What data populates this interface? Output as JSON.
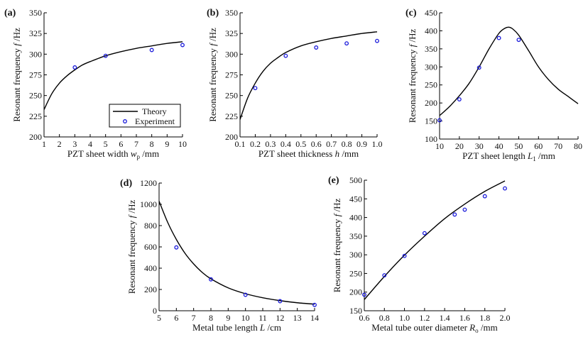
{
  "chart_data": [
    {
      "id": "a",
      "panel_label": "(a)",
      "type": "line+scatter",
      "xlabel": "PZT sheet width",
      "xlabel_symbol": "w",
      "xlabel_sub": "p",
      "xlabel_unit": " /mm",
      "ylabel": "Resonant frequency",
      "ylabel_symbol": "f",
      "ylabel_unit": " /Hz",
      "xlim": [
        1,
        10
      ],
      "ylim": [
        200,
        350
      ],
      "xticks": [
        "1",
        "2",
        "3",
        "4",
        "5",
        "6",
        "7",
        "8",
        "9",
        "10"
      ],
      "yticks": [
        "200",
        "225",
        "250",
        "275",
        "300",
        "325",
        "350"
      ],
      "xtick_values": [
        1,
        2,
        3,
        4,
        5,
        6,
        7,
        8,
        9,
        10
      ],
      "ytick_values": [
        200,
        225,
        250,
        275,
        300,
        325,
        350
      ],
      "legend": {
        "position": "bottom-right",
        "entries": [
          "Theory",
          "Experiment"
        ]
      },
      "theory": {
        "x": [
          1,
          1.5,
          2,
          2.5,
          3,
          3.5,
          4,
          5,
          6,
          7,
          8,
          9,
          10
        ],
        "y": [
          233,
          252,
          265,
          274,
          281,
          287,
          291,
          298,
          303,
          307,
          310,
          313,
          315
        ]
      },
      "experiment": {
        "x": [
          3,
          5,
          8,
          10
        ],
        "y": [
          284,
          298,
          305,
          311
        ]
      }
    },
    {
      "id": "b",
      "panel_label": "(b)",
      "type": "line+scatter",
      "xlabel": "PZT sheet thickness",
      "xlabel_symbol": "h",
      "xlabel_sub": "",
      "xlabel_unit": " /mm",
      "ylabel": "Resonant frequency",
      "ylabel_symbol": "f",
      "ylabel_unit": " /Hz",
      "xlim": [
        0.1,
        1.0
      ],
      "ylim": [
        200,
        350
      ],
      "xticks": [
        "0.1",
        "0.2",
        "0.3",
        "0.4",
        "0.5",
        "0.6",
        "0.7",
        "0.8",
        "0.9",
        "1.0"
      ],
      "yticks": [
        "200",
        "225",
        "250",
        "275",
        "300",
        "325",
        "350"
      ],
      "xtick_values": [
        0.1,
        0.2,
        0.3,
        0.4,
        0.5,
        0.6,
        0.7,
        0.8,
        0.9,
        1.0
      ],
      "ytick_values": [
        200,
        225,
        250,
        275,
        300,
        325,
        350
      ],
      "theory": {
        "x": [
          0.1,
          0.15,
          0.2,
          0.25,
          0.3,
          0.35,
          0.4,
          0.5,
          0.6,
          0.7,
          0.8,
          0.9,
          1.0
        ],
        "y": [
          221,
          247,
          265,
          279,
          289,
          296,
          302,
          310,
          315,
          319,
          322,
          325,
          327
        ]
      },
      "experiment": {
        "x": [
          0.2,
          0.4,
          0.6,
          0.8,
          1.0
        ],
        "y": [
          259,
          298,
          308,
          313,
          316
        ]
      }
    },
    {
      "id": "c",
      "panel_label": "(c)",
      "type": "line+scatter",
      "xlabel": "PZT sheet length",
      "xlabel_symbol": "L",
      "xlabel_sub": "1",
      "xlabel_unit": " /mm",
      "ylabel": "Resonant frequency",
      "ylabel_symbol": "f",
      "ylabel_unit": " /Hz",
      "xlim": [
        10,
        80
      ],
      "ylim": [
        100,
        450
      ],
      "xticks": [
        "10",
        "20",
        "30",
        "40",
        "50",
        "60",
        "70",
        "80"
      ],
      "yticks": [
        "100",
        "150",
        "200",
        "250",
        "300",
        "350",
        "400",
        "450"
      ],
      "xtick_values": [
        10,
        20,
        30,
        40,
        50,
        60,
        70,
        80
      ],
      "ytick_values": [
        100,
        150,
        200,
        250,
        300,
        350,
        400,
        450
      ],
      "theory": {
        "x": [
          10,
          15,
          20,
          25,
          30,
          35,
          40,
          43,
          45,
          47,
          50,
          55,
          60,
          65,
          70,
          75,
          80
        ],
        "y": [
          165,
          190,
          220,
          255,
          300,
          350,
          393,
          407,
          410,
          405,
          388,
          345,
          300,
          265,
          238,
          218,
          198
        ]
      },
      "experiment": {
        "x": [
          10,
          20,
          30,
          40,
          50
        ],
        "y": [
          152,
          210,
          298,
          380,
          375
        ]
      }
    },
    {
      "id": "d",
      "panel_label": "(d)",
      "type": "line+scatter",
      "xlabel": "Metal tube length",
      "xlabel_symbol": "L",
      "xlabel_sub": "",
      "xlabel_unit": " /cm",
      "ylabel": "Resonant frequency",
      "ylabel_symbol": "f",
      "ylabel_unit": " /Hz",
      "xlim": [
        5,
        14
      ],
      "ylim": [
        0,
        1200
      ],
      "xticks": [
        "5",
        "6",
        "7",
        "8",
        "9",
        "10",
        "11",
        "12",
        "13",
        "14"
      ],
      "yticks": [
        "0",
        "200",
        "400",
        "600",
        "800",
        "1000",
        "1200"
      ],
      "xtick_values": [
        5,
        6,
        7,
        8,
        9,
        10,
        11,
        12,
        13,
        14
      ],
      "ytick_values": [
        0,
        200,
        400,
        600,
        800,
        1000,
        1200
      ],
      "theory": {
        "x": [
          5,
          5.5,
          6,
          6.5,
          7,
          7.5,
          8,
          9,
          10,
          11,
          12,
          13,
          14
        ],
        "y": [
          1030,
          830,
          670,
          540,
          440,
          360,
          300,
          215,
          160,
          122,
          95,
          75,
          62
        ]
      },
      "experiment": {
        "x": [
          6,
          8,
          10,
          12,
          14
        ],
        "y": [
          595,
          295,
          150,
          90,
          55
        ]
      }
    },
    {
      "id": "e",
      "panel_label": "(e)",
      "type": "line+scatter",
      "xlabel": "Metal tube outer diameter",
      "xlabel_symbol": "R",
      "xlabel_sub": "o",
      "xlabel_unit": " /mm",
      "ylabel": "Resonant frequency",
      "ylabel_symbol": "f",
      "ylabel_unit": " /Hz",
      "xlim": [
        0.6,
        2.0
      ],
      "ylim": [
        150,
        500
      ],
      "xticks": [
        "0.6",
        "0.8",
        "1.0",
        "1.2",
        "1.4",
        "1.6",
        "1.8",
        "2.0"
      ],
      "yticks": [
        "150",
        "200",
        "250",
        "300",
        "350",
        "400",
        "450",
        "500"
      ],
      "xtick_values": [
        0.6,
        0.8,
        1.0,
        1.2,
        1.4,
        1.6,
        1.8,
        2.0
      ],
      "ytick_values": [
        150,
        200,
        250,
        300,
        350,
        400,
        450,
        500
      ],
      "theory": {
        "x": [
          0.6,
          0.8,
          1.0,
          1.2,
          1.4,
          1.6,
          1.8,
          2.0
        ],
        "y": [
          180,
          242,
          299,
          350,
          397,
          436,
          470,
          498
        ]
      },
      "experiment": {
        "x": [
          0.6,
          0.8,
          1.0,
          1.2,
          1.5,
          1.6,
          1.8,
          2.0
        ],
        "y": [
          193,
          245,
          297,
          358,
          408,
          421,
          457,
          478
        ]
      }
    }
  ],
  "colors": {
    "theory_line": "#000000",
    "experiment_marker": "#1a1adb",
    "axis": "#000000"
  }
}
